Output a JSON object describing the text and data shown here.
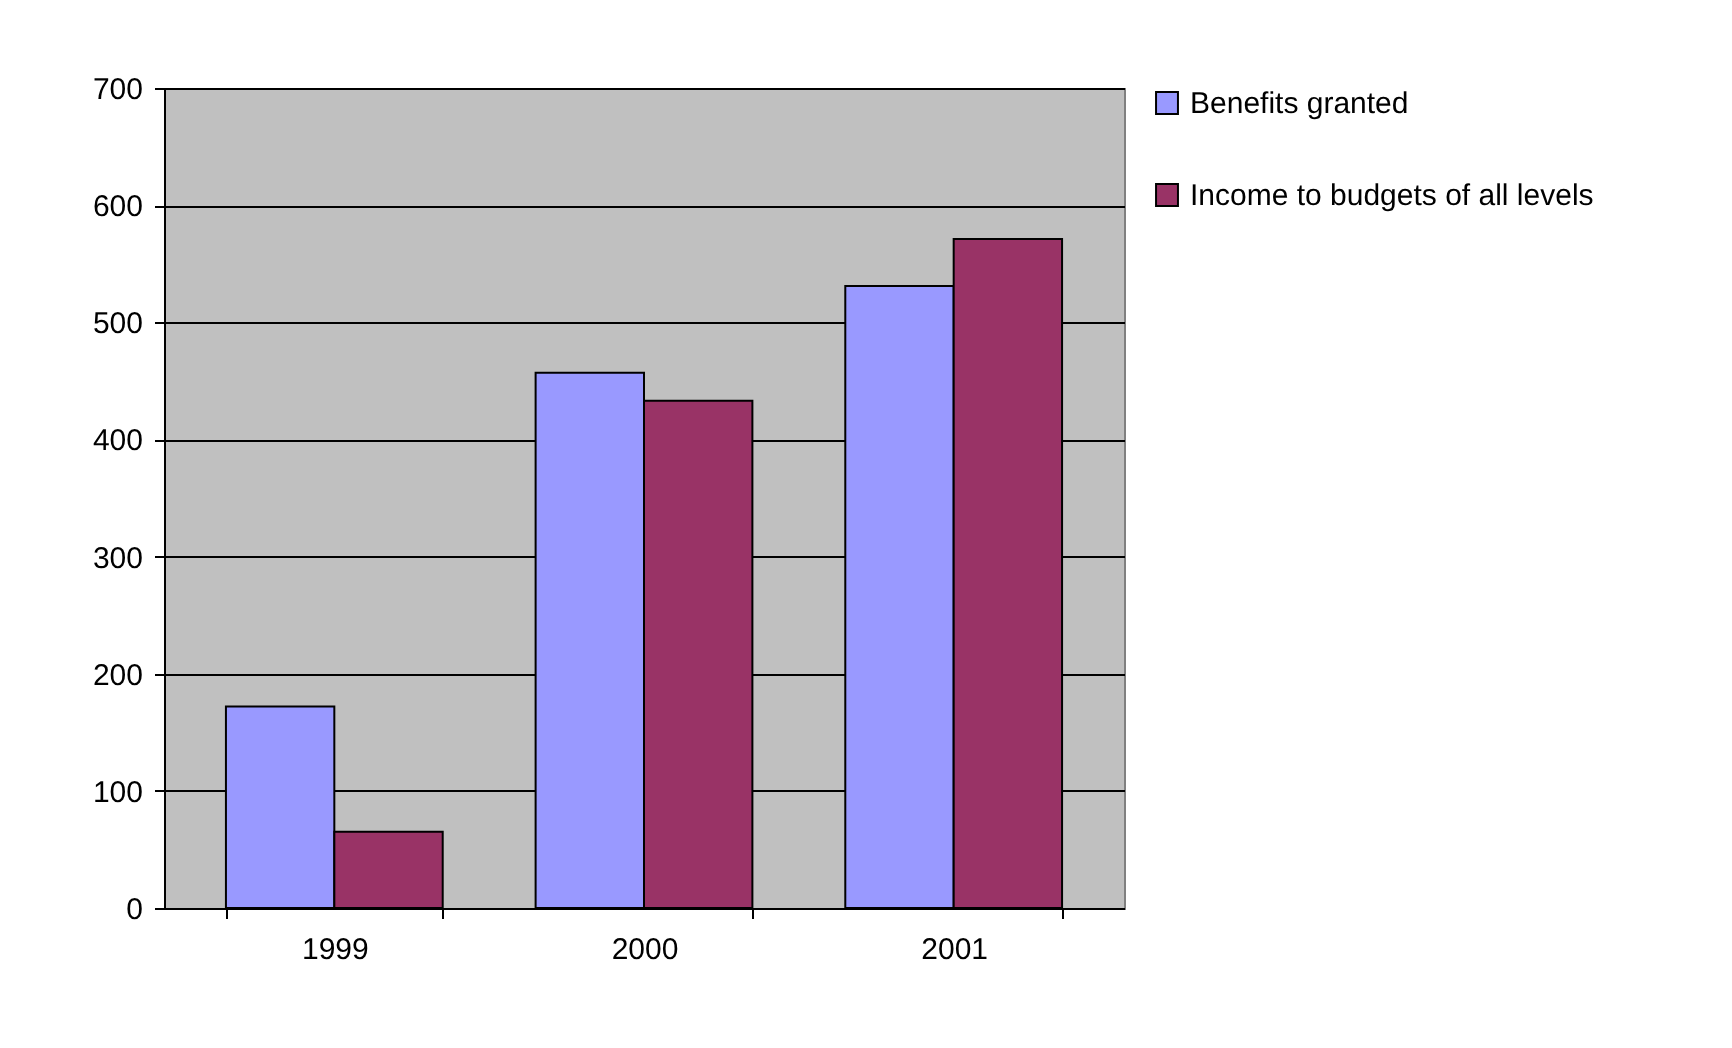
{
  "chart_data": {
    "type": "bar",
    "categories": [
      "1999",
      "2000",
      "2001"
    ],
    "series": [
      {
        "name": "Benefits granted",
        "color": "#9999ff",
        "values": [
          172,
          457,
          531
        ]
      },
      {
        "name": "Income to budgets of all levels",
        "color": "#993366",
        "values": [
          65,
          433,
          571
        ]
      }
    ],
    "ylim": [
      0,
      700
    ],
    "yticks": [
      0,
      100,
      200,
      300,
      400,
      500,
      600,
      700
    ],
    "grid": "y",
    "legend": "right"
  }
}
